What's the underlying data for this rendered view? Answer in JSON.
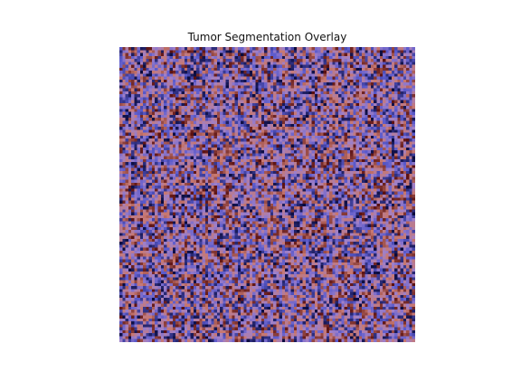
{
  "chart_data": {
    "type": "heatmap",
    "title": "Tumor Segmentation Overlay",
    "rows": 100,
    "cols": 100,
    "value_range": [
      0,
      1
    ],
    "axes_visible": false,
    "colorbar": false,
    "colormap": [
      "#0a0a3c",
      "#5a5acc",
      "#a080c8",
      "#c87870",
      "#5a1010"
    ],
    "pattern": "pseudo-random noise",
    "seed": 7
  }
}
